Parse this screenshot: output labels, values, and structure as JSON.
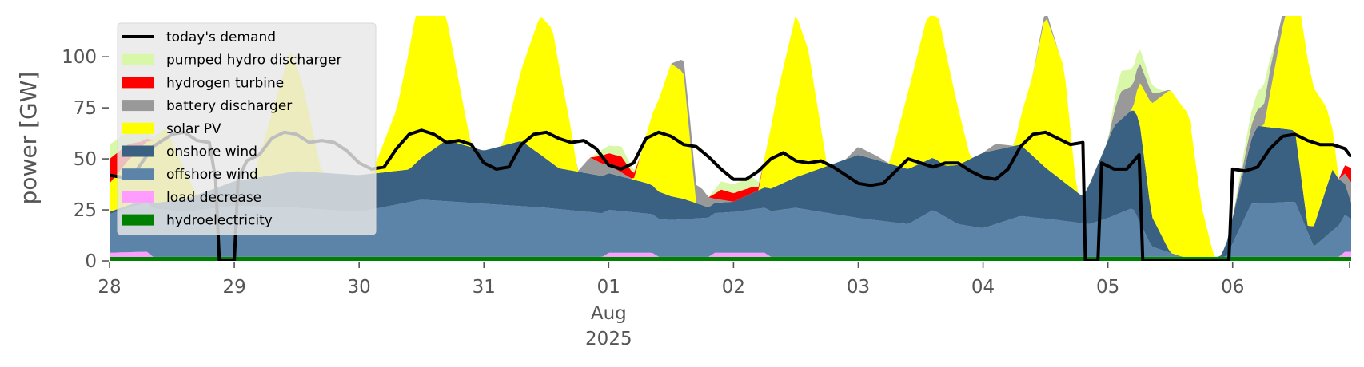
{
  "chart_data": {
    "type": "area",
    "ylabel": "power [GW]",
    "ylim": [
      0,
      120
    ],
    "xlim": [
      0,
      9.95
    ],
    "y_ticks": [
      0,
      25,
      50,
      75,
      100
    ],
    "x_ticks": [
      {
        "x": 0,
        "label": "28"
      },
      {
        "x": 1,
        "label": "29"
      },
      {
        "x": 2,
        "label": "30"
      },
      {
        "x": 3,
        "label": "31"
      },
      {
        "x": 4,
        "label": "01"
      },
      {
        "x": 5,
        "label": "02"
      },
      {
        "x": 6,
        "label": "03"
      },
      {
        "x": 7,
        "label": "04"
      },
      {
        "x": 8,
        "label": "05"
      },
      {
        "x": 9,
        "label": "06"
      }
    ],
    "x_sublabels": [
      "Aug",
      "2025"
    ],
    "x_unit": "days since Jul 28 2025",
    "grid": false,
    "legend_position": "top-left",
    "legend": [
      {
        "label": "today's demand",
        "color": "#000000",
        "kind": "line"
      },
      {
        "label": "pumped hydro discharger",
        "color": "#d9f7a8",
        "kind": "patch"
      },
      {
        "label": "hydrogen turbine",
        "color": "#ff0000",
        "kind": "patch"
      },
      {
        "label": "battery discharger",
        "color": "#999999",
        "kind": "patch"
      },
      {
        "label": "solar PV",
        "color": "#ffff00",
        "kind": "patch"
      },
      {
        "label": "onshore wind",
        "color": "#3b6182",
        "kind": "patch"
      },
      {
        "label": "offshore wind",
        "color": "#5c84a8",
        "kind": "patch"
      },
      {
        "label": "load decrease",
        "color": "#ff9cff",
        "kind": "patch"
      },
      {
        "label": "hydroelectricity",
        "color": "#008000",
        "kind": "patch"
      }
    ],
    "stack_order": [
      "hydroelectricity",
      "load decrease",
      "offshore wind",
      "onshore wind",
      "solar PV",
      "battery discharger",
      "hydrogen turbine",
      "pumped hydro discharger"
    ],
    "series": [
      {
        "name": "hydroelectricity",
        "color": "#008000",
        "points": [
          [
            0,
            2
          ],
          [
            9.95,
            2
          ]
        ]
      },
      {
        "name": "load decrease",
        "color": "#ff9cff",
        "points": [
          [
            0,
            2
          ],
          [
            0.3,
            2.5
          ],
          [
            0.35,
            0
          ],
          [
            3.95,
            0
          ],
          [
            4,
            2
          ],
          [
            4.35,
            2
          ],
          [
            4.4,
            0
          ],
          [
            4.8,
            0
          ],
          [
            4.85,
            2
          ],
          [
            5.25,
            2
          ],
          [
            5.3,
            0
          ],
          [
            9.85,
            0
          ],
          [
            9.9,
            2.5
          ],
          [
            9.95,
            2.5
          ]
        ]
      },
      {
        "name": "offshore wind",
        "color": "#5c84a8",
        "points": [
          [
            0,
            19
          ],
          [
            0.3,
            24
          ],
          [
            0.6,
            22
          ],
          [
            1,
            25
          ],
          [
            1.5,
            24
          ],
          [
            2,
            22
          ],
          [
            2.5,
            28
          ],
          [
            3,
            26
          ],
          [
            3.5,
            24
          ],
          [
            4,
            21
          ],
          [
            4.5,
            18
          ],
          [
            5,
            20
          ],
          [
            5.5,
            24
          ],
          [
            6,
            19
          ],
          [
            6.4,
            16
          ],
          [
            6.6,
            23
          ],
          [
            6.8,
            16
          ],
          [
            7,
            14
          ],
          [
            7.3,
            20
          ],
          [
            7.6,
            18
          ],
          [
            7.85,
            16
          ],
          [
            8,
            19
          ],
          [
            8.2,
            24
          ],
          [
            8.35,
            5
          ],
          [
            8.6,
            0
          ],
          [
            8.95,
            0
          ],
          [
            9.15,
            26
          ],
          [
            9.5,
            27
          ],
          [
            9.65,
            5
          ],
          [
            9.9,
            18
          ],
          [
            9.95,
            16
          ]
        ]
      },
      {
        "name": "onshore wind",
        "color": "#3b6182",
        "points": [
          [
            0,
            1
          ],
          [
            0.3,
            2
          ],
          [
            0.6,
            6
          ],
          [
            1,
            12
          ],
          [
            1.5,
            18
          ],
          [
            2,
            18
          ],
          [
            2.4,
            16
          ],
          [
            2.7,
            30
          ],
          [
            3,
            26
          ],
          [
            3.3,
            32
          ],
          [
            3.6,
            20
          ],
          [
            4,
            18
          ],
          [
            4.3,
            15
          ],
          [
            4.6,
            10
          ],
          [
            4.8,
            5
          ],
          [
            5,
            5
          ],
          [
            5.5,
            15
          ],
          [
            6,
            31
          ],
          [
            6.4,
            27
          ],
          [
            6.7,
            25
          ],
          [
            7,
            37
          ],
          [
            7.3,
            35
          ],
          [
            7.5,
            25
          ],
          [
            7.8,
            13
          ],
          [
            8.05,
            44
          ],
          [
            8.25,
            50
          ],
          [
            8.35,
            15
          ],
          [
            8.5,
            0
          ],
          [
            8.9,
            0
          ],
          [
            9.2,
            38
          ],
          [
            9.5,
            35
          ],
          [
            9.6,
            3
          ],
          [
            9.8,
            30
          ],
          [
            9.95,
            8
          ]
        ]
      },
      {
        "name": "solar PV",
        "color": "#ffff00",
        "points": [
          [
            0,
            14
          ],
          [
            0.15,
            22
          ],
          [
            0.3,
            28
          ],
          [
            0.45,
            36
          ],
          [
            0.55,
            22
          ],
          [
            0.7,
            0
          ],
          [
            1.15,
            0
          ],
          [
            1.3,
            30
          ],
          [
            1.45,
            60
          ],
          [
            1.55,
            42
          ],
          [
            1.7,
            0
          ],
          [
            2.1,
            0
          ],
          [
            2.3,
            30
          ],
          [
            2.45,
            72
          ],
          [
            2.55,
            88
          ],
          [
            2.7,
            60
          ],
          [
            2.9,
            0
          ],
          [
            3.15,
            0
          ],
          [
            3.3,
            35
          ],
          [
            3.45,
            68
          ],
          [
            3.55,
            66
          ],
          [
            3.7,
            20
          ],
          [
            3.75,
            0
          ],
          [
            4.2,
            0
          ],
          [
            4.35,
            35
          ],
          [
            4.5,
            65
          ],
          [
            4.6,
            62
          ],
          [
            4.7,
            0
          ],
          [
            5.2,
            0
          ],
          [
            5.35,
            45
          ],
          [
            5.5,
            80
          ],
          [
            5.6,
            60
          ],
          [
            5.75,
            0
          ],
          [
            6.25,
            0
          ],
          [
            6.4,
            38
          ],
          [
            6.55,
            70
          ],
          [
            6.65,
            70
          ],
          [
            6.8,
            28
          ],
          [
            6.9,
            0
          ],
          [
            7.25,
            0
          ],
          [
            7.4,
            40
          ],
          [
            7.5,
            75
          ],
          [
            7.65,
            56
          ],
          [
            7.75,
            0
          ],
          [
            8.2,
            0
          ],
          [
            8.35,
            55
          ],
          [
            8.5,
            80
          ],
          [
            8.65,
            70
          ],
          [
            8.75,
            25
          ],
          [
            8.85,
            0
          ],
          [
            9.25,
            0
          ],
          [
            9.4,
            50
          ],
          [
            9.5,
            75
          ],
          [
            9.6,
            82
          ],
          [
            9.75,
            40
          ],
          [
            9.85,
            0
          ],
          [
            9.95,
            0
          ]
        ]
      },
      {
        "name": "battery discharger",
        "color": "#999999",
        "points": [
          [
            0,
            0
          ],
          [
            3.75,
            0
          ],
          [
            3.85,
            8
          ],
          [
            3.95,
            6
          ],
          [
            4.05,
            3
          ],
          [
            4.2,
            0
          ],
          [
            4.5,
            0
          ],
          [
            4.65,
            10
          ],
          [
            4.75,
            8
          ],
          [
            4.85,
            2
          ],
          [
            5,
            0
          ],
          [
            5.9,
            0
          ],
          [
            6,
            4
          ],
          [
            6.15,
            2
          ],
          [
            6.25,
            0
          ],
          [
            7,
            0
          ],
          [
            7.1,
            3
          ],
          [
            7.25,
            0
          ],
          [
            7.4,
            0
          ],
          [
            7.5,
            3
          ],
          [
            7.6,
            0
          ],
          [
            8.0,
            0
          ],
          [
            8.1,
            14
          ],
          [
            8.25,
            10
          ],
          [
            8.4,
            3
          ],
          [
            8.5,
            0
          ],
          [
            9.0,
            0
          ],
          [
            9.1,
            5
          ],
          [
            9.3,
            12
          ],
          [
            9.45,
            4
          ],
          [
            9.55,
            0
          ],
          [
            9.85,
            0
          ],
          [
            9.95,
            10
          ]
        ]
      },
      {
        "name": "hydrogen turbine",
        "color": "#ff0000",
        "points": [
          [
            0,
            12
          ],
          [
            0.15,
            8
          ],
          [
            0.25,
            3
          ],
          [
            0.35,
            0
          ],
          [
            3.85,
            0
          ],
          [
            3.95,
            4
          ],
          [
            4.1,
            8
          ],
          [
            4.25,
            0
          ],
          [
            4.8,
            0
          ],
          [
            4.9,
            5
          ],
          [
            5.15,
            3
          ],
          [
            5.25,
            0
          ],
          [
            9.85,
            0
          ],
          [
            9.9,
            4
          ],
          [
            9.95,
            7
          ]
        ]
      },
      {
        "name": "pumped hydro discharger",
        "color": "#d9f7a8",
        "points": [
          [
            0,
            7
          ],
          [
            0.15,
            6
          ],
          [
            0.3,
            3
          ],
          [
            0.45,
            0
          ],
          [
            3.85,
            0
          ],
          [
            3.95,
            3
          ],
          [
            4.1,
            5
          ],
          [
            4.25,
            0
          ],
          [
            4.8,
            0
          ],
          [
            4.9,
            4
          ],
          [
            5.15,
            5
          ],
          [
            5.25,
            0
          ],
          [
            8.0,
            0
          ],
          [
            8.1,
            10
          ],
          [
            8.3,
            6
          ],
          [
            8.45,
            0
          ],
          [
            9.0,
            0
          ],
          [
            9.1,
            5
          ],
          [
            9.25,
            10
          ],
          [
            9.35,
            0
          ],
          [
            9.95,
            0
          ]
        ]
      }
    ],
    "demand": {
      "name": "today's demand",
      "color": "#000000",
      "points": [
        [
          0,
          42
        ],
        [
          0.1,
          41
        ],
        [
          0.2,
          43
        ],
        [
          0.35,
          56
        ],
        [
          0.5,
          62
        ],
        [
          0.6,
          63
        ],
        [
          0.7,
          59
        ],
        [
          0.8,
          58
        ],
        [
          0.85,
          40
        ],
        [
          0.88,
          0
        ],
        [
          1.0,
          0
        ],
        [
          1.03,
          40
        ],
        [
          1.1,
          49
        ],
        [
          1.2,
          52
        ],
        [
          1.3,
          60
        ],
        [
          1.4,
          63
        ],
        [
          1.5,
          62
        ],
        [
          1.6,
          58
        ],
        [
          1.7,
          59
        ],
        [
          1.8,
          58
        ],
        [
          1.9,
          54
        ],
        [
          2.0,
          48
        ],
        [
          2.1,
          45
        ],
        [
          2.2,
          46
        ],
        [
          2.3,
          55
        ],
        [
          2.4,
          62
        ],
        [
          2.5,
          64
        ],
        [
          2.6,
          62
        ],
        [
          2.7,
          58
        ],
        [
          2.8,
          59
        ],
        [
          2.9,
          57
        ],
        [
          3.0,
          48
        ],
        [
          3.1,
          45
        ],
        [
          3.2,
          46
        ],
        [
          3.3,
          57
        ],
        [
          3.4,
          62
        ],
        [
          3.5,
          63
        ],
        [
          3.6,
          60
        ],
        [
          3.7,
          58
        ],
        [
          3.8,
          59
        ],
        [
          3.9,
          55
        ],
        [
          4.0,
          47
        ],
        [
          4.1,
          45
        ],
        [
          4.2,
          48
        ],
        [
          4.3,
          60
        ],
        [
          4.4,
          63
        ],
        [
          4.5,
          61
        ],
        [
          4.6,
          57
        ],
        [
          4.7,
          56
        ],
        [
          4.8,
          51
        ],
        [
          4.9,
          45
        ],
        [
          5.0,
          40
        ],
        [
          5.1,
          40
        ],
        [
          5.2,
          44
        ],
        [
          5.3,
          50
        ],
        [
          5.4,
          53
        ],
        [
          5.5,
          49
        ],
        [
          5.6,
          48
        ],
        [
          5.7,
          49
        ],
        [
          5.8,
          46
        ],
        [
          5.9,
          42
        ],
        [
          6.0,
          38
        ],
        [
          6.1,
          37
        ],
        [
          6.2,
          38
        ],
        [
          6.3,
          44
        ],
        [
          6.4,
          50
        ],
        [
          6.5,
          48
        ],
        [
          6.6,
          46
        ],
        [
          6.7,
          48
        ],
        [
          6.8,
          48
        ],
        [
          6.9,
          44
        ],
        [
          7.0,
          41
        ],
        [
          7.1,
          40
        ],
        [
          7.2,
          45
        ],
        [
          7.3,
          56
        ],
        [
          7.4,
          62
        ],
        [
          7.5,
          63
        ],
        [
          7.6,
          60
        ],
        [
          7.7,
          57
        ],
        [
          7.8,
          58
        ],
        [
          7.82,
          0
        ],
        [
          7.92,
          0
        ],
        [
          7.95,
          48
        ],
        [
          8.05,
          45
        ],
        [
          8.15,
          45
        ],
        [
          8.25,
          52
        ],
        [
          8.28,
          0
        ],
        [
          8.97,
          0
        ],
        [
          9.0,
          45
        ],
        [
          9.1,
          44
        ],
        [
          9.2,
          46
        ],
        [
          9.3,
          55
        ],
        [
          9.4,
          61
        ],
        [
          9.5,
          62
        ],
        [
          9.6,
          59
        ],
        [
          9.7,
          57
        ],
        [
          9.8,
          57
        ],
        [
          9.9,
          55
        ],
        [
          9.95,
          51
        ]
      ]
    }
  }
}
